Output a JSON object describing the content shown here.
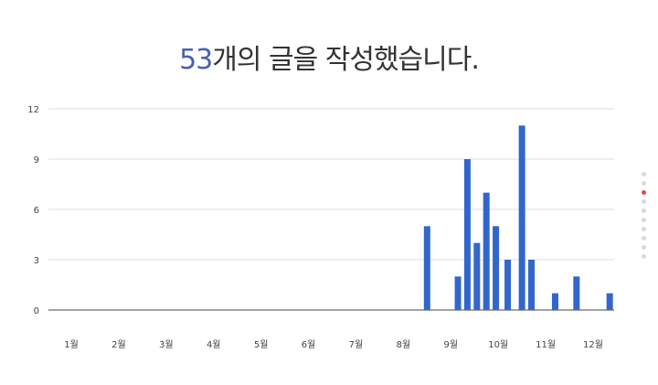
{
  "headline": {
    "count": "53",
    "text": "개의 글을 작성했습니다."
  },
  "colors": {
    "bar": "#3366cc",
    "count_text": "#4a5fb0",
    "grid": "#dddddd",
    "axis": "#444444",
    "active_dot": "#e24b3b"
  },
  "pager": {
    "total": 10,
    "active_index": 2
  },
  "chart_data": {
    "type": "bar",
    "title": "",
    "xlabel": "",
    "ylabel": "",
    "ylim": [
      0,
      12
    ],
    "y_ticks": [
      "0",
      "3",
      "6",
      "9",
      "12"
    ],
    "x_ticks": [
      "1월",
      "2월",
      "3월",
      "4월",
      "5월",
      "6월",
      "7월",
      "8월",
      "9월",
      "10월",
      "11월",
      "12월"
    ],
    "x_range": [
      1,
      13
    ],
    "grid": true,
    "series": [
      {
        "x": [
          8.5,
          9.15,
          9.35,
          9.55,
          9.75,
          9.95,
          10.2,
          10.5,
          10.7,
          11.2,
          11.65,
          12.35
        ],
        "values": [
          5,
          2,
          9,
          4,
          7,
          5,
          3,
          11,
          3,
          1,
          2,
          1
        ]
      }
    ]
  }
}
